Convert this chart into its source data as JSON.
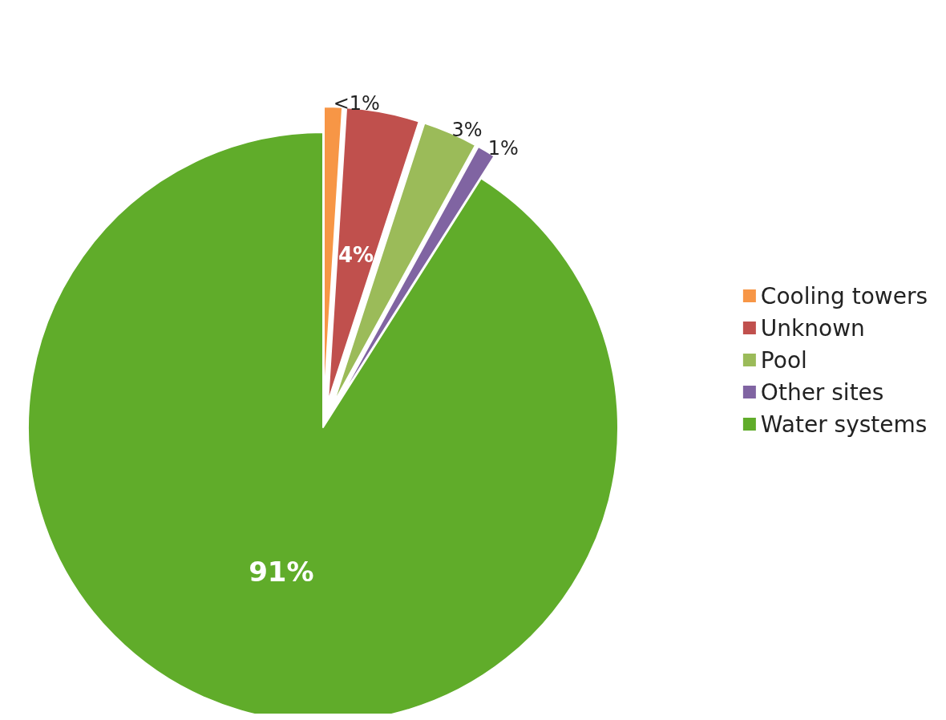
{
  "chart_data": {
    "type": "pie",
    "categories": [
      "Cooling towers",
      "Unknown",
      "Pool",
      "Other sites",
      "Water systems"
    ],
    "values": [
      1,
      4,
      3,
      1,
      91
    ],
    "value_labels": [
      "<1%",
      "4%",
      "3%",
      "1%",
      "91%"
    ],
    "colors": [
      "#f79646",
      "#c0504d",
      "#9bbb59",
      "#8064a2",
      "#60ac2a"
    ],
    "legend": "right"
  }
}
